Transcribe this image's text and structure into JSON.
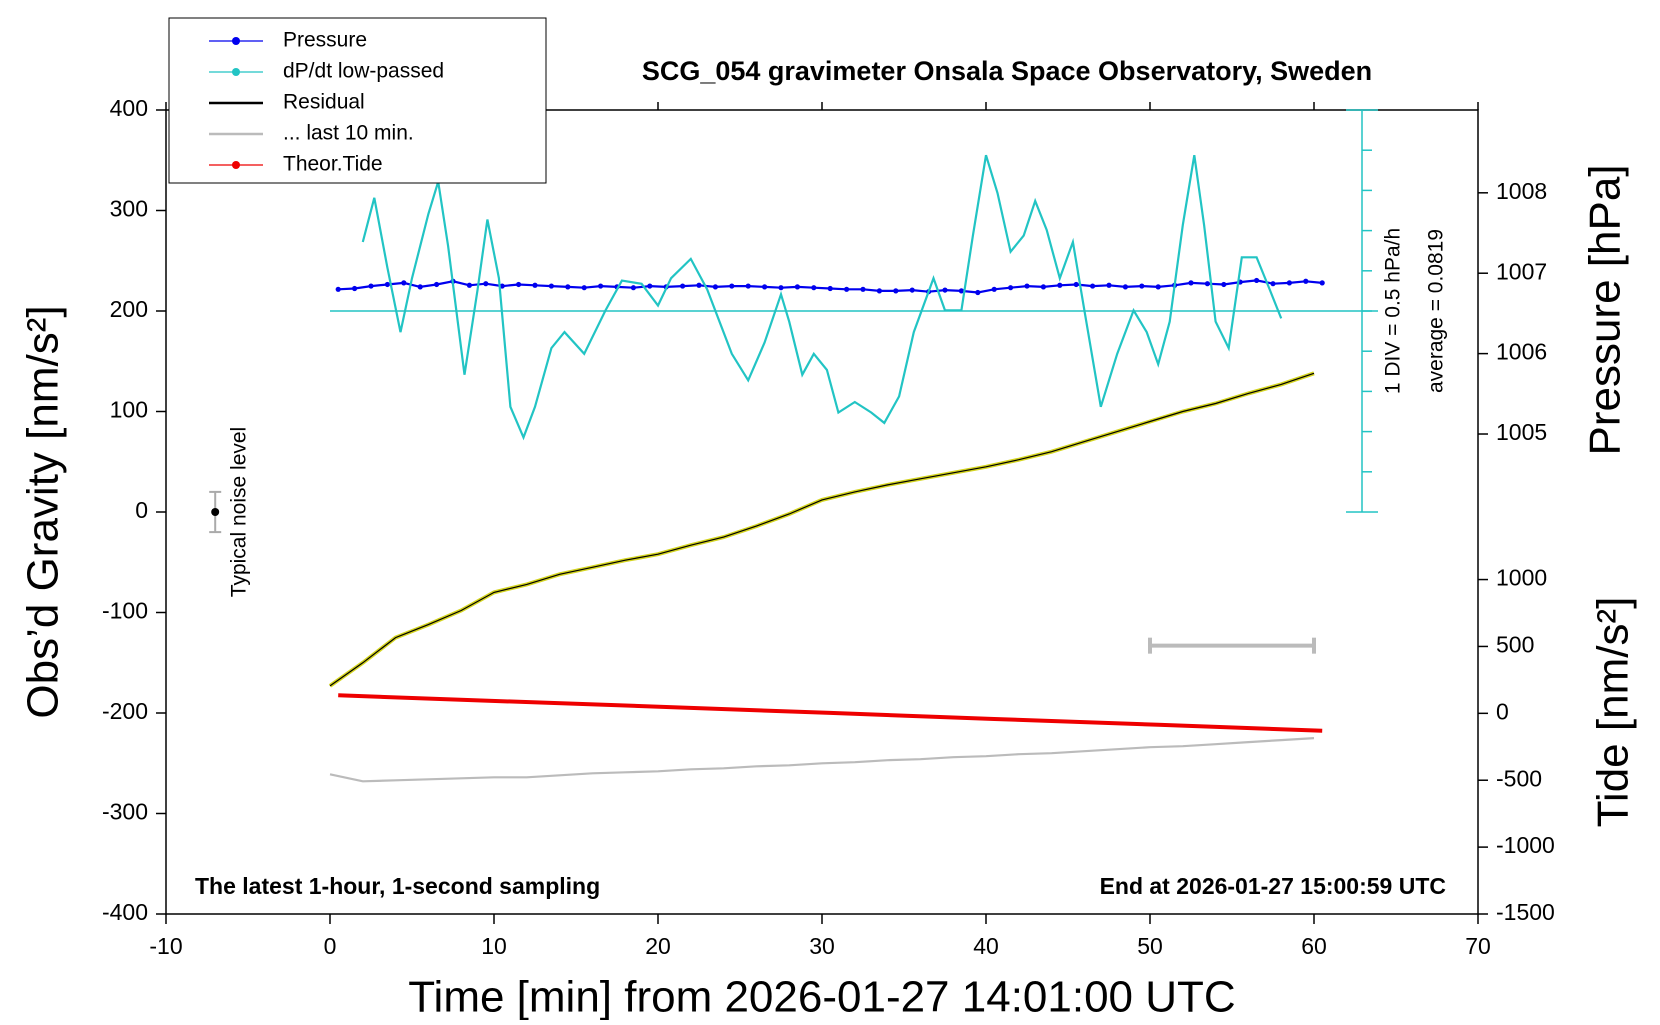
{
  "chart_data": {
    "type": "line",
    "title": "SCG_054 gravimeter Onsala Space Observatory, Sweden",
    "x_label": "Time [min] from 2026-01-27 14:01:00 UTC",
    "y_label": "Obs’d Gravity [nm/s²]",
    "y2_label": "Pressure [hPa]",
    "y3_label": "Tide [nm/s²]",
    "annotation_left": "The latest 1-hour, 1-second sampling",
    "annotation_right": "End at 2026-01-27 15:00:59 UTC",
    "dpdt_div": {
      "value": 0.5,
      "label": "1 DIV = 0.5 hPa/h"
    },
    "dpdt_average": {
      "value": 0.0819,
      "label": "average = 0.0819"
    },
    "xlim": [
      -10,
      70
    ],
    "xticks": [
      -10,
      0,
      10,
      20,
      30,
      40,
      50,
      60,
      70
    ],
    "ylim": [
      -400,
      400
    ],
    "yticks": [
      -400,
      -300,
      -200,
      -100,
      0,
      100,
      200,
      300,
      400
    ],
    "y2lim": [
      999.03,
      1009.03
    ],
    "y2ticks": [
      1005,
      1006,
      1007,
      1008
    ],
    "y3lim": [
      -1500,
      4510
    ],
    "y3ticks": [
      -1500,
      -1000,
      -500,
      0,
      500,
      1000
    ],
    "dpdt_lim": [
      -7.418,
      2.582
    ],
    "legend": "upper left",
    "noise_level": {
      "x": -7,
      "value": 0,
      "error": 20,
      "label": "Typical noise level"
    },
    "last_10min_bar": {
      "x": [
        50,
        60
      ],
      "value": -133,
      "color": "#bbbbbb"
    },
    "series": [
      {
        "name": "Pressure",
        "color": "#0000ee",
        "axis": "y2",
        "marker": true,
        "x": [
          0.5,
          1.5,
          2.5,
          3.5,
          4.5,
          5.5,
          6.5,
          7.5,
          8.5,
          9.5,
          10.5,
          11.5,
          12.5,
          13.5,
          14.5,
          15.5,
          16.5,
          17.5,
          18.5,
          19.5,
          20.5,
          21.5,
          22.5,
          23.5,
          24.5,
          25.5,
          26.5,
          27.5,
          28.5,
          29.5,
          30.5,
          31.5,
          32.5,
          33.5,
          34.5,
          35.5,
          36.5,
          37.5,
          38.5,
          39.5,
          40.5,
          41.5,
          42.5,
          43.5,
          44.5,
          45.5,
          46.5,
          47.5,
          48.5,
          49.5,
          50.5,
          51.5,
          52.5,
          53.5,
          54.5,
          55.5,
          56.5,
          57.5,
          58.5,
          59.5,
          60.5
        ],
        "values": [
          1006.8,
          1006.81,
          1006.84,
          1006.86,
          1006.88,
          1006.83,
          1006.86,
          1006.9,
          1006.85,
          1006.87,
          1006.84,
          1006.86,
          1006.85,
          1006.84,
          1006.83,
          1006.82,
          1006.84,
          1006.83,
          1006.82,
          1006.84,
          1006.83,
          1006.84,
          1006.85,
          1006.83,
          1006.84,
          1006.84,
          1006.83,
          1006.82,
          1006.83,
          1006.82,
          1006.81,
          1006.8,
          1006.8,
          1006.78,
          1006.78,
          1006.79,
          1006.77,
          1006.79,
          1006.78,
          1006.76,
          1006.8,
          1006.82,
          1006.84,
          1006.83,
          1006.85,
          1006.86,
          1006.84,
          1006.85,
          1006.83,
          1006.84,
          1006.83,
          1006.85,
          1006.88,
          1006.87,
          1006.86,
          1006.89,
          1006.91,
          1006.87,
          1006.88,
          1006.9,
          1006.88
        ]
      },
      {
        "name": "dP/dt low-passed",
        "color": "#22c4c4",
        "axis": "dpdt",
        "marker": true,
        "x": [
          2.0,
          2.7,
          3.5,
          4.3,
          5.0,
          6.0,
          6.6,
          7.2,
          8.2,
          9.0,
          9.6,
          10.3,
          11.0,
          11.8,
          12.5,
          13.5,
          14.3,
          15.5,
          16.8,
          17.8,
          19.0,
          20.0,
          20.8,
          22.0,
          23.0,
          24.5,
          25.5,
          26.5,
          27.5,
          28.0,
          28.8,
          29.5,
          30.3,
          31.0,
          32.0,
          33.0,
          33.8,
          34.7,
          35.6,
          36.8,
          37.5,
          38.5,
          39.2,
          40.0,
          40.7,
          41.5,
          42.3,
          43.0,
          43.7,
          44.5,
          45.3,
          46.0,
          47.0,
          48.0,
          49.0,
          49.8,
          50.5,
          51.2,
          52.0,
          52.7,
          53.3,
          54.0,
          54.8,
          55.6,
          56.5,
          57.3,
          58.0
        ],
        "values": [
          0.94,
          1.49,
          0.62,
          -0.18,
          0.49,
          1.29,
          1.69,
          0.89,
          -0.71,
          0.35,
          1.22,
          0.49,
          -1.11,
          -1.49,
          -1.11,
          -0.38,
          -0.18,
          -0.45,
          0.09,
          0.46,
          0.42,
          0.15,
          0.49,
          0.73,
          0.35,
          -0.45,
          -0.78,
          -0.31,
          0.29,
          -0.05,
          -0.71,
          -0.45,
          -0.65,
          -1.18,
          -1.05,
          -1.18,
          -1.31,
          -0.98,
          -0.18,
          0.49,
          0.09,
          0.09,
          1.02,
          2.02,
          1.55,
          0.82,
          1.02,
          1.45,
          1.09,
          0.49,
          0.94,
          0.09,
          -1.11,
          -0.45,
          0.09,
          -0.18,
          -0.58,
          -0.05,
          1.15,
          2.02,
          1.15,
          -0.05,
          -0.38,
          0.75,
          0.75,
          0.35,
          -0.01
        ]
      },
      {
        "name": "Residual",
        "color": "#000000",
        "highlight_color": "#d4d420",
        "axis": "y",
        "marker": false,
        "x": [
          0,
          2,
          4,
          6,
          8,
          10,
          12,
          14,
          16,
          18,
          20,
          22,
          24,
          26,
          28,
          30,
          32,
          34,
          36,
          38,
          40,
          42,
          44,
          46,
          48,
          50,
          52,
          54,
          56,
          58,
          60
        ],
        "values": [
          -173,
          -150,
          -125,
          -112,
          -98,
          -80,
          -72,
          -62,
          -55,
          -48,
          -42,
          -33,
          -25,
          -14,
          -2,
          12,
          20,
          27,
          33,
          39,
          45,
          52,
          60,
          70,
          80,
          90,
          100,
          108,
          118,
          127,
          138
        ]
      },
      {
        "name": "... last 10 min.",
        "color": "#bbbbbb",
        "axis": "y",
        "marker": false,
        "x": [
          0,
          2,
          4,
          6,
          8,
          10,
          12,
          14,
          16,
          18,
          20,
          22,
          24,
          26,
          28,
          30,
          32,
          34,
          36,
          38,
          40,
          42,
          44,
          46,
          48,
          50,
          52,
          54,
          56,
          58,
          60
        ],
        "values": [
          -261,
          -268,
          -267,
          -266,
          -265,
          -264,
          -264,
          -262,
          -260,
          -259,
          -258,
          -256,
          -255,
          -253,
          -252,
          -250,
          -249,
          -247,
          -246,
          -244,
          -243,
          -241,
          -240,
          -238,
          -236,
          -234,
          -233,
          -231,
          -229,
          -227,
          -225
        ]
      },
      {
        "name": "Theor.Tide",
        "color": "#ee0000",
        "axis": "y3",
        "marker": true,
        "x": [
          0.5,
          10.5,
          20.5,
          30.5,
          40.5,
          50.5,
          60.5
        ],
        "values": [
          135,
          91,
          47,
          3,
          -42,
          -86,
          -130
        ]
      }
    ]
  }
}
